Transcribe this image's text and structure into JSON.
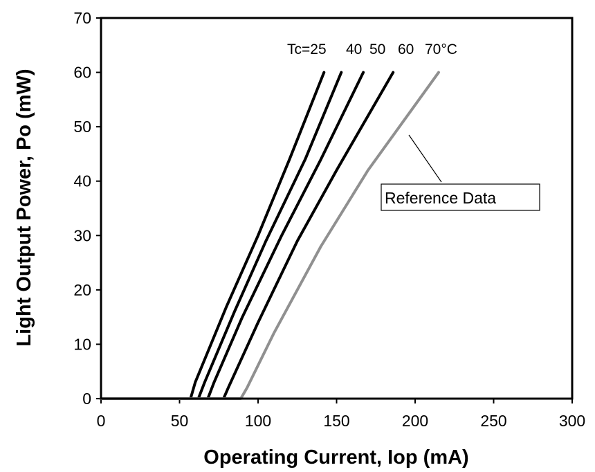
{
  "chart_data": {
    "type": "line",
    "title": "",
    "xlabel": "Operating Current, Iop (mA)",
    "ylabel": "Light Output Power, Po (mW)",
    "xlim": [
      0,
      300
    ],
    "ylim": [
      0,
      70
    ],
    "xticks": [
      0,
      50,
      100,
      150,
      200,
      250,
      300
    ],
    "yticks": [
      0,
      10,
      20,
      30,
      40,
      50,
      60,
      70
    ],
    "grid": false,
    "series": [
      {
        "label": "Tc=25",
        "color": "#000000",
        "x": [
          0,
          57,
          60,
          80,
          100,
          120,
          142
        ],
        "y": [
          0,
          0,
          3,
          17,
          30,
          44,
          60
        ]
      },
      {
        "label": "40",
        "color": "#000000",
        "x": [
          0,
          62,
          66,
          85,
          105,
          130,
          153
        ],
        "y": [
          0,
          0,
          3,
          16,
          29,
          44,
          60
        ]
      },
      {
        "label": "50",
        "color": "#000000",
        "x": [
          0,
          68,
          72,
          90,
          115,
          140,
          167
        ],
        "y": [
          0,
          0,
          3,
          15,
          30,
          44,
          60
        ]
      },
      {
        "label": "60",
        "color": "#000000",
        "x": [
          0,
          78,
          81,
          100,
          125,
          150,
          186
        ],
        "y": [
          0,
          0,
          2,
          14,
          29,
          42,
          60
        ]
      },
      {
        "label": "70°C",
        "color": "#909090",
        "x": [
          0,
          89,
          93,
          110,
          140,
          170,
          200,
          215
        ],
        "y": [
          0,
          0,
          2,
          12,
          28,
          42,
          54,
          60
        ]
      }
    ],
    "annotations": {
      "temperature_labels": [
        "Tc=25",
        "40",
        "50",
        "60",
        "70°C"
      ],
      "reference_label": "Reference Data"
    }
  }
}
